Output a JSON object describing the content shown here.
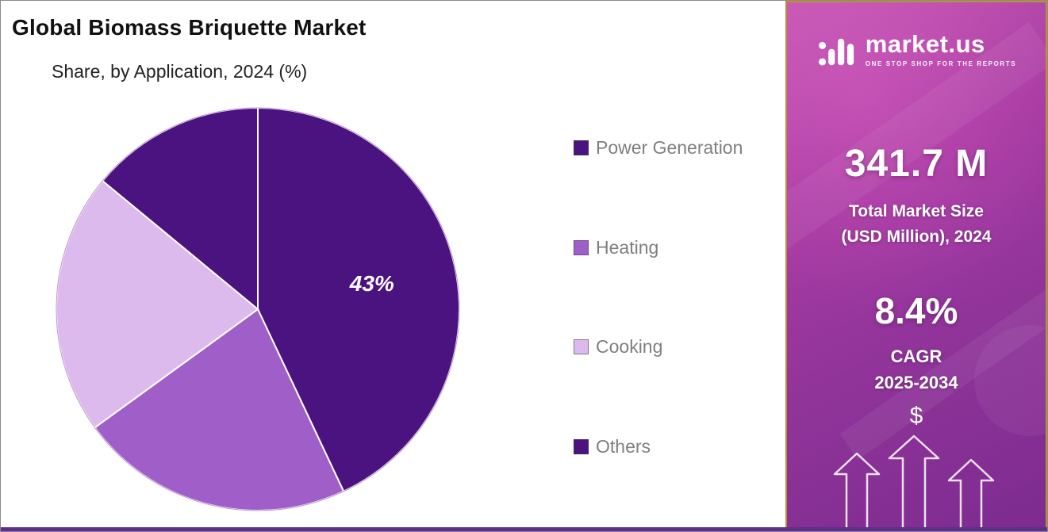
{
  "header": {
    "title": "Global Biomass Briquette Market",
    "subtitle": "Share, by Application, 2024 (%)"
  },
  "chart_data": {
    "type": "pie",
    "title": "Global Biomass Briquette Market",
    "subtitle": "Share, by Application, 2024 (%)",
    "unit": "%",
    "start_angle_deg": 0,
    "direction": "clockwise",
    "legend_position": "right",
    "slices": [
      {
        "label": "Power Generation",
        "value": 43,
        "color": "#4B1380",
        "data_label": "43%"
      },
      {
        "label": "Heating",
        "value": 22,
        "color": "#A05FC8",
        "data_label": ""
      },
      {
        "label": "Cooking",
        "value": 21,
        "color": "#DDBAEE",
        "data_label": ""
      },
      {
        "label": "Others",
        "value": 14,
        "color": "#4B1380",
        "data_label": ""
      }
    ]
  },
  "sidebar": {
    "logo_text": "market.us",
    "logo_tagline": "ONE STOP SHOP FOR THE REPORTS",
    "market_size_value": "341.7 M",
    "market_size_label_line1": "Total Market Size",
    "market_size_label_line2": "(USD Million), 2024",
    "cagr_value": "8.4%",
    "cagr_label_line1": "CAGR",
    "cagr_label_line2": "2025-2034",
    "dollar_symbol": "$"
  },
  "colors": {
    "sidebar_gradient_start": "#C257B2",
    "sidebar_gradient_end": "#7C2B8F",
    "sidebar_border": "#BF8F30",
    "bottom_bar": "#5E2D8E",
    "legend_text": "#7F7F7F",
    "pie_outline": "#8A4BB0"
  }
}
